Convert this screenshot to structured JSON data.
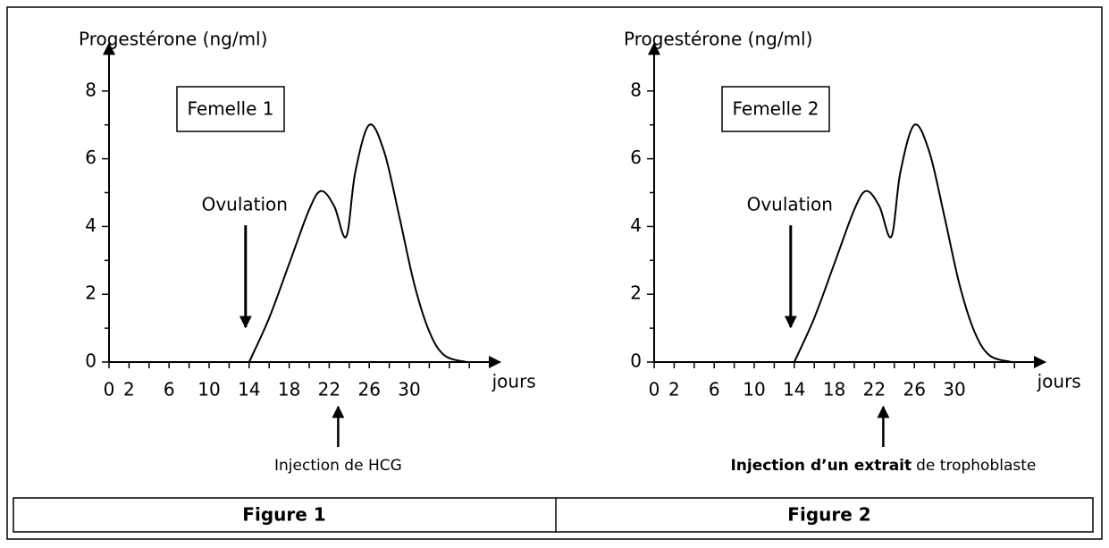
{
  "chart_data": [
    {
      "type": "line",
      "ylabel": "Progestérone (ng/ml)",
      "xlabel": "jours",
      "label": "Femelle 1",
      "x": [
        14,
        16,
        18,
        20,
        21.2,
        22.5,
        23.7,
        24.6,
        26,
        27.5,
        29,
        30.5,
        32,
        33.5,
        35.7
      ],
      "values": [
        0,
        1.3,
        2.9,
        4.5,
        5.05,
        4.6,
        3.7,
        5.6,
        7.0,
        6.2,
        4.3,
        2.3,
        0.9,
        0.2,
        0
      ],
      "color": "#000000",
      "xlim": [
        0,
        38
      ],
      "ylim": [
        0,
        9.4
      ],
      "xticks": [
        0,
        2,
        6,
        10,
        14,
        18,
        22,
        26,
        30
      ],
      "xminor_ticks": [
        4,
        8,
        12,
        16,
        20,
        24,
        28,
        32,
        34,
        36
      ],
      "yticks": [
        0,
        2,
        4,
        6,
        8
      ],
      "yminor_ticks": [
        1,
        3,
        5,
        7
      ],
      "annotations": [
        {
          "text": "Ovulation",
          "x": 14
        },
        {
          "text": [
            "Injection de HCG"
          ],
          "x": 22
        }
      ],
      "caption": "Figure 1"
    },
    {
      "type": "line",
      "ylabel": "Progestérone (ng/ml)",
      "xlabel": "jours",
      "label": "Femelle 2",
      "x": [
        14,
        16,
        18,
        20,
        21.2,
        22.5,
        23.7,
        24.6,
        26,
        27.5,
        29,
        30.5,
        32,
        33.5,
        35.7
      ],
      "values": [
        0,
        1.3,
        2.9,
        4.5,
        5.05,
        4.6,
        3.7,
        5.6,
        7.0,
        6.2,
        4.3,
        2.3,
        0.9,
        0.2,
        0
      ],
      "color": "#000000",
      "xlim": [
        0,
        38
      ],
      "ylim": [
        0,
        9.4
      ],
      "xticks": [
        0,
        2,
        6,
        10,
        14,
        18,
        22,
        26,
        30
      ],
      "xminor_ticks": [
        4,
        8,
        12,
        16,
        20,
        24,
        28,
        32,
        34,
        36
      ],
      "yticks": [
        0,
        2,
        4,
        6,
        8
      ],
      "yminor_ticks": [
        1,
        3,
        5,
        7
      ],
      "annotations": [
        {
          "text": "Ovulation",
          "x": 14
        },
        {
          "text": [
            "Injection d’un extrait",
            "de trophoblaste"
          ],
          "x": 22
        }
      ],
      "caption": "Figure 2"
    }
  ]
}
